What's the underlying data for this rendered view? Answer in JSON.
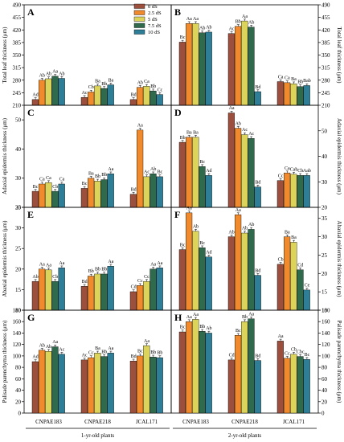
{
  "colors": {
    "0 dS": "#9c4f3c",
    "2.5 dS": "#f08a2c",
    "5 dS": "#dcd35a",
    "7.5 dS": "#2f6a4c",
    "10 dS": "#2d7e96"
  },
  "legend": [
    "0 dS",
    "2.5 dS",
    "5 dS",
    "7.5 dS",
    "10 dS"
  ],
  "cultivars": [
    "CNPAE183",
    "CNPAE218",
    "JCAL171"
  ],
  "group_labels": [
    "1-yr-old plants",
    "2-yr-old plants"
  ],
  "chart_data": [
    {
      "type": "bar",
      "panel": "A",
      "ylabel": "Total leaf thickness (μm)",
      "ylim": [
        210,
        490
      ],
      "ticks": [
        210,
        245,
        280,
        315,
        350,
        385,
        420,
        455,
        490
      ],
      "categories": [
        "CNPAE183",
        "CNPAE218",
        "JCAL171"
      ],
      "series": [
        {
          "name": "0 dS",
          "values": [
            226,
            232,
            226
          ],
          "letters": [
            "Ad",
            "Ac",
            "Bd"
          ]
        },
        {
          "name": "2.5 dS",
          "values": [
            280,
            247,
            260
          ],
          "letters": [
            "Ab",
            "Cb",
            "Ab"
          ]
        },
        {
          "name": "5 dS",
          "values": [
            284,
            264,
            263
          ],
          "letters": [
            "Ab",
            "Ba",
            "Ca"
          ]
        },
        {
          "name": "7.5 dS",
          "values": [
            291,
            257,
            250
          ],
          "letters": [
            "Aa",
            "Bb",
            "Bb"
          ]
        },
        {
          "name": "10 dS",
          "values": [
            285,
            267,
            240
          ],
          "letters": [
            "Ab",
            "Ba",
            "Cc"
          ]
        }
      ]
    },
    {
      "type": "bar",
      "panel": "B",
      "ylabel": "Total leaf thickness (μm)",
      "ylim": [
        210,
        490
      ],
      "ticks": [
        210,
        245,
        280,
        315,
        350,
        385,
        420,
        455,
        490
      ],
      "categories": [
        "CNPAE183",
        "CNPAE218",
        "JCAL171"
      ],
      "series": [
        {
          "name": "0 dS",
          "values": [
            386,
            410,
            276
          ],
          "letters": [
            "Bc",
            "Ac",
            "Ca"
          ]
        },
        {
          "name": "2.5 dS",
          "values": [
            438,
            430,
            273
          ],
          "letters": [
            "Aa",
            "Bb",
            "Ca"
          ]
        },
        {
          "name": "5 dS",
          "values": [
            438,
            445,
            270
          ],
          "letters": [
            "Aa",
            "Aa",
            "Ba"
          ]
        },
        {
          "name": "7.5 dS",
          "values": [
            412,
            428,
            262
          ],
          "letters": [
            "Ab",
            "Ab",
            "Bb"
          ]
        },
        {
          "name": "10 dS",
          "values": [
            414,
            248,
            265
          ],
          "letters": [
            "Ab",
            "Bd",
            "Bab"
          ]
        }
      ]
    },
    {
      "type": "bar",
      "panel": "C",
      "ylabel": "Adaxial epidermis thickness (μm)",
      "ylim": [
        20,
        55
      ],
      "ticks": [
        20,
        30,
        40,
        50
      ],
      "categories": [
        "CNPAE183",
        "CNPAE218",
        "JCAL171"
      ],
      "series": [
        {
          "name": "0 dS",
          "values": [
            25.5,
            26.5,
            24.5
          ],
          "letters": [
            "Bc",
            "Bc",
            "Bd"
          ]
        },
        {
          "name": "2.5 dS",
          "values": [
            28.0,
            30.0,
            46.5
          ],
          "letters": [
            "Ca",
            "Ba",
            "Aa"
          ]
        },
        {
          "name": "5 dS",
          "values": [
            28.5,
            29.0,
            30.5
          ],
          "letters": [
            "Ca",
            "Bb",
            "Ac"
          ]
        },
        {
          "name": "7.5 dS",
          "values": [
            25.5,
            29.5,
            31.5
          ],
          "letters": [
            "Cb",
            "Bb",
            "Ab"
          ]
        },
        {
          "name": "10 dS",
          "values": [
            28.0,
            31.5,
            30.5
          ],
          "letters": [
            "Ca",
            "Aa",
            "Bc"
          ]
        }
      ]
    },
    {
      "type": "bar",
      "panel": "D",
      "ylabel": "Adaxial epidermis thickness (μm)",
      "ylim": [
        20,
        60
      ],
      "ticks": [
        20,
        30,
        40,
        50
      ],
      "categories": [
        "CNPAE183",
        "CNPAE218",
        "JCAL171"
      ],
      "series": [
        {
          "name": "0 dS",
          "values": [
            45.5,
            57.0,
            30.5
          ],
          "letters": [
            "Bb",
            "Aa",
            "Cc"
          ]
        },
        {
          "name": "2.5 dS",
          "values": [
            47.5,
            51.0,
            33.5
          ],
          "letters": [
            "Ba",
            "Ab",
            "Ca"
          ]
        },
        {
          "name": "5 dS",
          "values": [
            47.5,
            48.5,
            33.0
          ],
          "letters": [
            "Ba",
            "Ac",
            "Cab"
          ]
        },
        {
          "name": "7.5 dS",
          "values": [
            36.0,
            47.0,
            32.5
          ],
          "letters": [
            "Bc",
            "Ac",
            "Cb"
          ]
        },
        {
          "name": "10 dS",
          "values": [
            32.5,
            28.0,
            32.5
          ],
          "letters": [
            "Ad",
            "Bd",
            "Aab"
          ]
        }
      ]
    },
    {
      "type": "bar",
      "panel": "E",
      "ylabel": "Abaxial epidermis thickness (μm)",
      "ylim": [
        10,
        35
      ],
      "ticks": [
        10,
        15,
        20,
        25,
        30,
        35
      ],
      "categories": [
        "CNPAE183",
        "CNPAE218",
        "JCAL171"
      ],
      "series": [
        {
          "name": "0 dS",
          "values": [
            17.0,
            15.8,
            14.5
          ],
          "letters": [
            "Ab",
            "Bd",
            "Cd"
          ]
        },
        {
          "name": "2.5 dS",
          "values": [
            20.0,
            18.3,
            16.0
          ],
          "letters": [
            "Aa",
            "Bb",
            "Cc"
          ]
        },
        {
          "name": "5 dS",
          "values": [
            19.8,
            18.8,
            17.0
          ],
          "letters": [
            "Aa",
            "Bb",
            "Cc"
          ]
        },
        {
          "name": "7.5 dS",
          "values": [
            17.0,
            18.8,
            20.0
          ],
          "letters": [
            "Cb",
            "Bb",
            "Aa"
          ]
        },
        {
          "name": "10 dS",
          "values": [
            20.3,
            20.7,
            20.3
          ],
          "letters": [
            "Aa",
            "Aa",
            "Aa"
          ]
        }
      ]
    },
    {
      "type": "bar",
      "panel": "F",
      "ylabel": "Abaxial epidermis thickness (μm)",
      "ylim": [
        10,
        38
      ],
      "ticks": [
        10,
        15,
        20,
        25,
        30,
        35
      ],
      "categories": [
        "CNPAE183",
        "CNPAE218",
        "JCAL171"
      ],
      "series": [
        {
          "name": "0 dS",
          "values": [
            26.5,
            30.0,
            22.5
          ],
          "letters": [
            "Bc",
            "Ab",
            "Cb"
          ]
        },
        {
          "name": "2.5 dS",
          "values": [
            36.5,
            36.0,
            30.0
          ],
          "letters": [
            "Aa",
            "Aa",
            "Ba"
          ]
        },
        {
          "name": "5 dS",
          "values": [
            31.5,
            31.0,
            28.5
          ],
          "letters": [
            "Ab",
            "Ab",
            "Ba"
          ]
        },
        {
          "name": "7.5 dS",
          "values": [
            27.0,
            32.0,
            21.0
          ],
          "letters": [
            "Bc",
            "Ab",
            "Cd"
          ]
        },
        {
          "name": "10 dS",
          "values": [
            24.5,
            19.5,
            15.5
          ],
          "letters": [
            "Ad",
            "Bd",
            "Ce"
          ]
        }
      ]
    },
    {
      "type": "bar",
      "panel": "G",
      "ylabel": "Palisade parenchyma thickness (μm)",
      "ylim": [
        0,
        180
      ],
      "ticks": [
        0,
        20,
        40,
        60,
        80,
        100,
        120,
        140,
        160,
        180
      ],
      "categories": [
        "CNPAE183",
        "CNPAE218",
        "JCAL171"
      ],
      "series": [
        {
          "name": "0 dS",
          "values": [
            90,
            93,
            91
          ],
          "letters": [
            "Ad",
            "Ac",
            "Bd"
          ]
        },
        {
          "name": "2.5 dS",
          "values": [
            110,
            97,
            100
          ],
          "letters": [
            "Ab",
            "Cc",
            "Bc"
          ]
        },
        {
          "name": "5 dS",
          "values": [
            108,
            105,
            118
          ],
          "letters": [
            "Ab",
            "Ba",
            "Aa"
          ]
        },
        {
          "name": "7.5 dS",
          "values": [
            116,
            99,
            98
          ],
          "letters": [
            "Aa",
            "Bb",
            "Bb"
          ]
        },
        {
          "name": "10 dS",
          "values": [
            103,
            105,
            97
          ],
          "letters": [
            "Ac",
            "Aa",
            "Bb"
          ]
        }
      ]
    },
    {
      "type": "bar",
      "panel": "H",
      "ylabel": "Palisade parenchyma thickness (μm)",
      "ylim": [
        0,
        180
      ],
      "ticks": [
        0,
        20,
        40,
        60,
        80,
        100,
        120,
        140,
        160,
        180
      ],
      "categories": [
        "CNPAE183",
        "CNPAE218",
        "JCAL171"
      ],
      "series": [
        {
          "name": "0 dS",
          "values": [
            142,
            93,
            126
          ],
          "letters": [
            "Bc",
            "Cd",
            "Aa"
          ]
        },
        {
          "name": "2.5 dS",
          "values": [
            160,
            136,
            96
          ],
          "letters": [
            "Aa",
            "Bc",
            "Cc"
          ]
        },
        {
          "name": "5 dS",
          "values": [
            164,
            160,
            103
          ],
          "letters": [
            "Aa",
            "Bb",
            "Cb"
          ]
        },
        {
          "name": "7.5 dS",
          "values": [
            143,
            165,
            99
          ],
          "letters": [
            "Bb",
            "Aa",
            "Cbc"
          ]
        },
        {
          "name": "10 dS",
          "values": [
            140,
            92,
            94
          ],
          "letters": [
            "Ab",
            "Bd",
            "Bc"
          ]
        }
      ]
    }
  ]
}
